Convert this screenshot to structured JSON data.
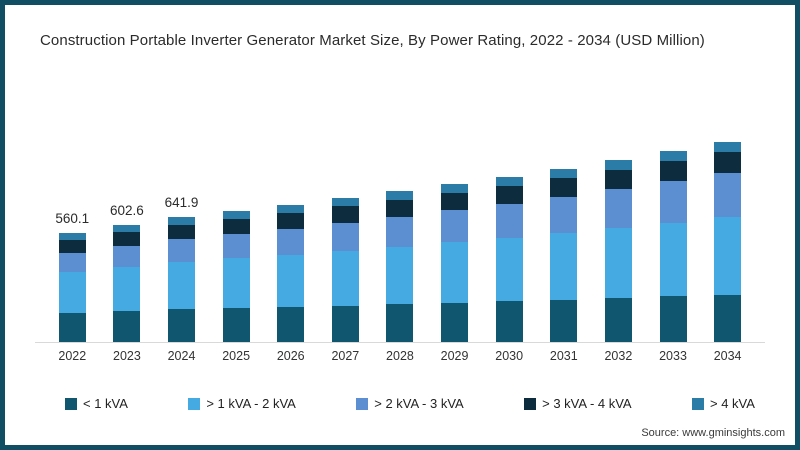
{
  "title": "Construction Portable Inverter Generator Market Size, By Power Rating, 2022 - 2034 (USD Million)",
  "source": "Source: www.gminsights.com",
  "chart_data": {
    "type": "bar",
    "stacked": true,
    "title": "Construction Portable Inverter Generator Market Size, By Power Rating, 2022 - 2034 (USD Million)",
    "xlabel": "",
    "ylabel": "USD Million",
    "grid": false,
    "legend_position": "bottom",
    "y_axis_visible": false,
    "categories": [
      "2022",
      "2023",
      "2024",
      "2025",
      "2026",
      "2027",
      "2028",
      "2029",
      "2030",
      "2031",
      "2032",
      "2033",
      "2034"
    ],
    "series": [
      {
        "name": "< 1 kVA",
        "color": "#0f566e",
        "values": [
          149.0,
          158.9,
          167.6,
          174.1,
          180.7,
          187.6,
          194.7,
          202.0,
          209.6,
          217.6,
          225.8,
          234.4,
          243.2
        ]
      },
      {
        "name": "> 1 kVA - 2 kVA",
        "color": "#45a9e2",
        "values": [
          210.6,
          227.2,
          242.7,
          255.2,
          268.1,
          281.9,
          296.1,
          311.1,
          326.9,
          343.7,
          361.3,
          379.7,
          399.1
        ]
      },
      {
        "name": "> 2 kVA - 3 kVA",
        "color": "#5c8ed2",
        "values": [
          98.0,
          107.7,
          117.1,
          125.4,
          134.0,
          143.2,
          152.9,
          163.2,
          174.3,
          186.0,
          198.5,
          211.8,
          225.7
        ]
      },
      {
        "name": "> 3 kVA - 4 kVA",
        "color": "#0d2c3d",
        "values": [
          66.7,
          71.0,
          74.9,
          77.7,
          80.6,
          83.7,
          86.7,
          89.9,
          93.2,
          96.7,
          100.2,
          104.0,
          107.7
        ]
      },
      {
        "name": "> 4 kVA",
        "color": "#2b7ca6",
        "values": [
          35.8,
          37.8,
          39.6,
          40.7,
          41.8,
          43.0,
          44.1,
          45.3,
          46.5,
          47.7,
          48.8,
          50.1,
          51.3
        ]
      }
    ],
    "totals_estimated": [
      560.1,
      602.6,
      641.9,
      673,
      705,
      739,
      774,
      811,
      850,
      891,
      934,
      979,
      1026
    ],
    "data_labels": [
      "560.1",
      "602.6",
      "641.9",
      "",
      "",
      "",
      "",
      "",
      "",
      "",
      "",
      "",
      ""
    ]
  }
}
